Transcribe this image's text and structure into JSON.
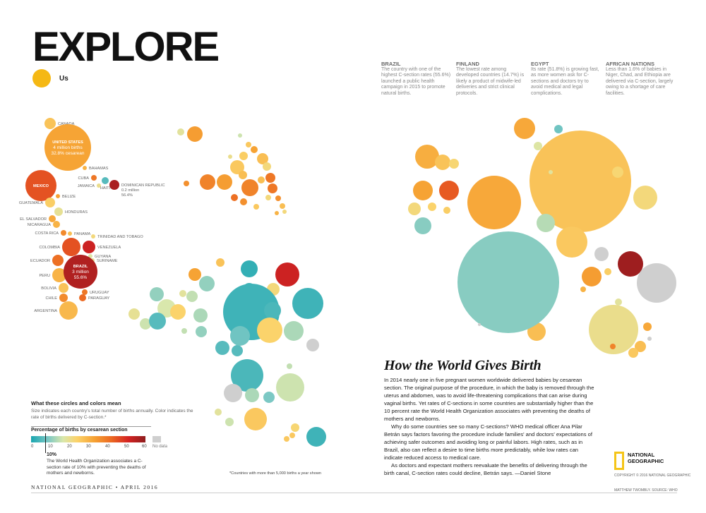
{
  "header": {
    "title": "EXPLORE",
    "section": "Us"
  },
  "article": {
    "title": "How the World Gives Birth",
    "paragraphs": [
      "In 2014 nearly one in five pregnant women worldwide delivered babies by cesarean section. The original purpose of the procedure, in which the baby is removed through the uterus and abdomen, was to avoid life-threatening complications that can arise during vaginal births. Yet rates of C-sections in some countries are substantially higher than the 10 percent rate the World Health Organization associates with preventing the deaths of mothers and newborns.",
      "Why do some countries see so many C-sections? WHO medical officer Ana Pilar Betrán says factors favoring the procedure include families' and doctors' expectations of achieving safer outcomes and avoiding long or painful labors. High rates, such as in Brazil, also can reflect a desire to time births more predictably, while low rates can indicate reduced access to medical care.",
      "As doctors and expectant mothers reevaluate the benefits of delivering through the birth canal, C-section rates could decline, Betrán says. —Daniel Stone"
    ]
  },
  "notes": [
    {
      "head": "BRAZIL",
      "text": "The country with one of the highest C-section rates (55.6%) launched a public health campaign in 2015 to promote natural births."
    },
    {
      "head": "FINLAND",
      "text": "The lowest rate among developed countries (14.7%) is likely a product of midwife-led deliveries and strict clinical protocols."
    },
    {
      "head": "EGYPT",
      "text": "Its rate (51.8%) is growing fast, as more women ask for C-sections and doctors try to avoid medical and legal complications."
    },
    {
      "head": "AFRICAN NATIONS",
      "text": "Less than 1.6% of babies in Niger, Chad, and Ethiopia are delivered via C-section, largely owing to a shortage of care facilities."
    }
  ],
  "legend": {
    "heading": "What these circles and colors mean",
    "desc": "Size indicates each country's total number of births annually. Color indicates the rate of births delivered by C-section.*",
    "bar_title": "Percentage of births by cesarean section",
    "ticks": [
      "0",
      "10",
      "20",
      "30",
      "40",
      "50",
      "60"
    ],
    "nodata": "No data",
    "ten_label": "10%",
    "ten_desc": "The World Health Organization associates a C-section rate of 10% with preventing the deaths of mothers and newborns."
  },
  "footnote": "*Countries with more than 5,000 births a year shown",
  "footer": {
    "magazine": "NATIONAL GEOGRAPHIC • APRIL 2016",
    "logo_text": "NATIONAL GEOGRAPHIC",
    "copyright": "COPYRIGHT © 2016 NATIONAL GEOGRAPHIC",
    "credit": "MATTHEW TWOMBLY. SOURCE: WHO"
  },
  "colors": {
    "low": "#1aa6b0",
    "mid": "#fbd36b",
    "high": "#d42322",
    "nodata": "#cfcfcf"
  },
  "bubbles": {
    "americas": [
      {
        "name": "CANADA",
        "label": "CANADA",
        "rate": 27
      },
      {
        "name": "UNITED STATES",
        "label": "UNITED STATES",
        "inner": [
          "UNITED STATES",
          "4 million births",
          "32.8% cesarean"
        ],
        "rate": 32.8
      },
      {
        "name": "MEXICO",
        "label": "MEXICO",
        "inner": [
          "MEXICO"
        ],
        "rate": 45
      },
      {
        "name": "BAHAMAS",
        "label": "BAHAMAS",
        "rate": 30
      },
      {
        "name": "CUBA",
        "label": "CUBA",
        "rate": 40
      },
      {
        "name": "JAMAICA",
        "label": "JAMAICA",
        "rate": 20
      },
      {
        "name": "HAITI",
        "label": "HAITI",
        "rate": 5
      },
      {
        "name": "DOMINICAN REPUBLIC",
        "label": "DOMINICAN REPUBLIC",
        "sub": [
          "0.2 million",
          "56.4%"
        ],
        "rate": 56.4
      },
      {
        "name": "BELIZE",
        "label": "BELIZE",
        "rate": 33
      },
      {
        "name": "GUATEMALA",
        "label": "GUATEMALA",
        "rate": 25
      },
      {
        "name": "HONDURAS",
        "label": "HONDURAS",
        "rate": 19
      },
      {
        "name": "EL SALVADOR",
        "label": "EL SALVADOR",
        "rate": 32
      },
      {
        "name": "NICARAGUA",
        "label": "NICARAGUA",
        "rate": 30
      },
      {
        "name": "COSTA RICA",
        "label": "COSTA RICA",
        "rate": 37
      },
      {
        "name": "PANAMA",
        "label": "PANAMA",
        "rate": 28
      },
      {
        "name": "TRINIDAD AND TOBAGO",
        "label": "TRINIDAD AND TOBAGO",
        "rate": 22
      },
      {
        "name": "COLOMBIA",
        "label": "COLOMBIA",
        "rate": 45
      },
      {
        "name": "VENEZUELA",
        "label": "VENEZUELA",
        "rate": 52
      },
      {
        "name": "ECUADOR",
        "label": "ECUADOR",
        "rate": 41
      },
      {
        "name": "GUYANA",
        "label": "GUYANA",
        "rate": 17
      },
      {
        "name": "SURINAME",
        "label": "SURINAME",
        "rate": 19
      },
      {
        "name": "PERU",
        "label": "PERU",
        "rate": 30
      },
      {
        "name": "BRAZIL",
        "label": "BRAZIL",
        "inner": [
          "BRAZIL",
          "3 million",
          "55.6%"
        ],
        "rate": 55.6
      },
      {
        "name": "BOLIVIA",
        "label": "BOLIVIA",
        "rate": 27
      },
      {
        "name": "URUGUAY",
        "label": "URUGUAY",
        "rate": 40
      },
      {
        "name": "PARAGUAY",
        "label": "PARAGUAY",
        "rate": 42
      },
      {
        "name": "CHILE",
        "label": "CHILE",
        "rate": 37
      },
      {
        "name": "ARGENTINA",
        "label": "ARGENTINA",
        "rate": 29
      }
    ]
  }
}
